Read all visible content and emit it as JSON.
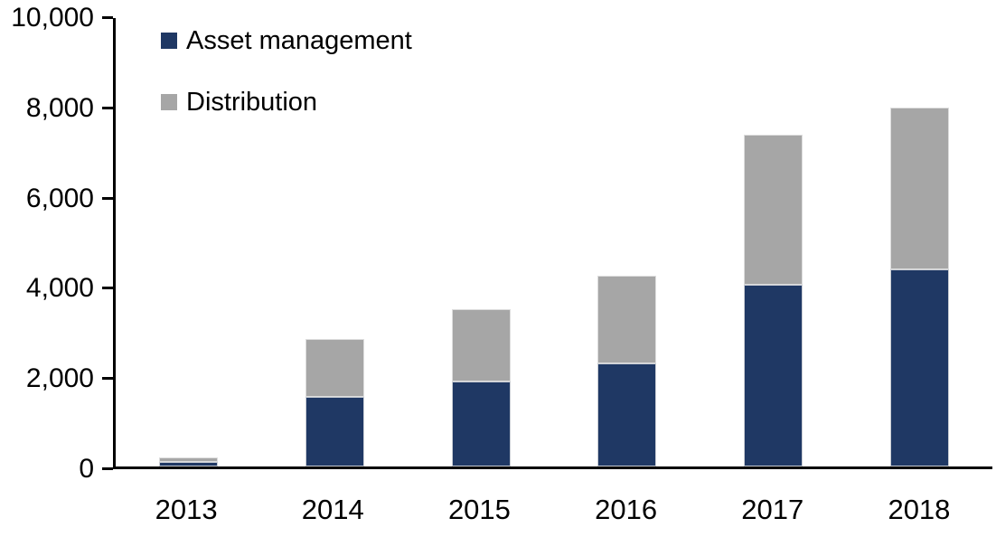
{
  "chart_data": {
    "type": "bar",
    "stacked": true,
    "title": "",
    "xlabel": "",
    "ylabel": "",
    "categories": [
      "2013",
      "2014",
      "2015",
      "2016",
      "2017",
      "2018"
    ],
    "series": [
      {
        "name": "Asset management",
        "color": "#1F3864",
        "values": [
          100,
          1550,
          1900,
          2300,
          4050,
          4400
        ]
      },
      {
        "name": "Distribution",
        "color": "#A6A6A6",
        "values": [
          100,
          1300,
          1600,
          1950,
          3350,
          3600
        ]
      }
    ],
    "ylim": [
      0,
      10000
    ],
    "ytick_interval": 2000,
    "ytick_labels": [
      "0",
      "2,000",
      "4,000",
      "6,000",
      "8,000",
      "10,000"
    ],
    "legend_position": "top-left-inside",
    "grid": false,
    "axis_color": "#000000",
    "background_color": "#FFFFFF"
  }
}
